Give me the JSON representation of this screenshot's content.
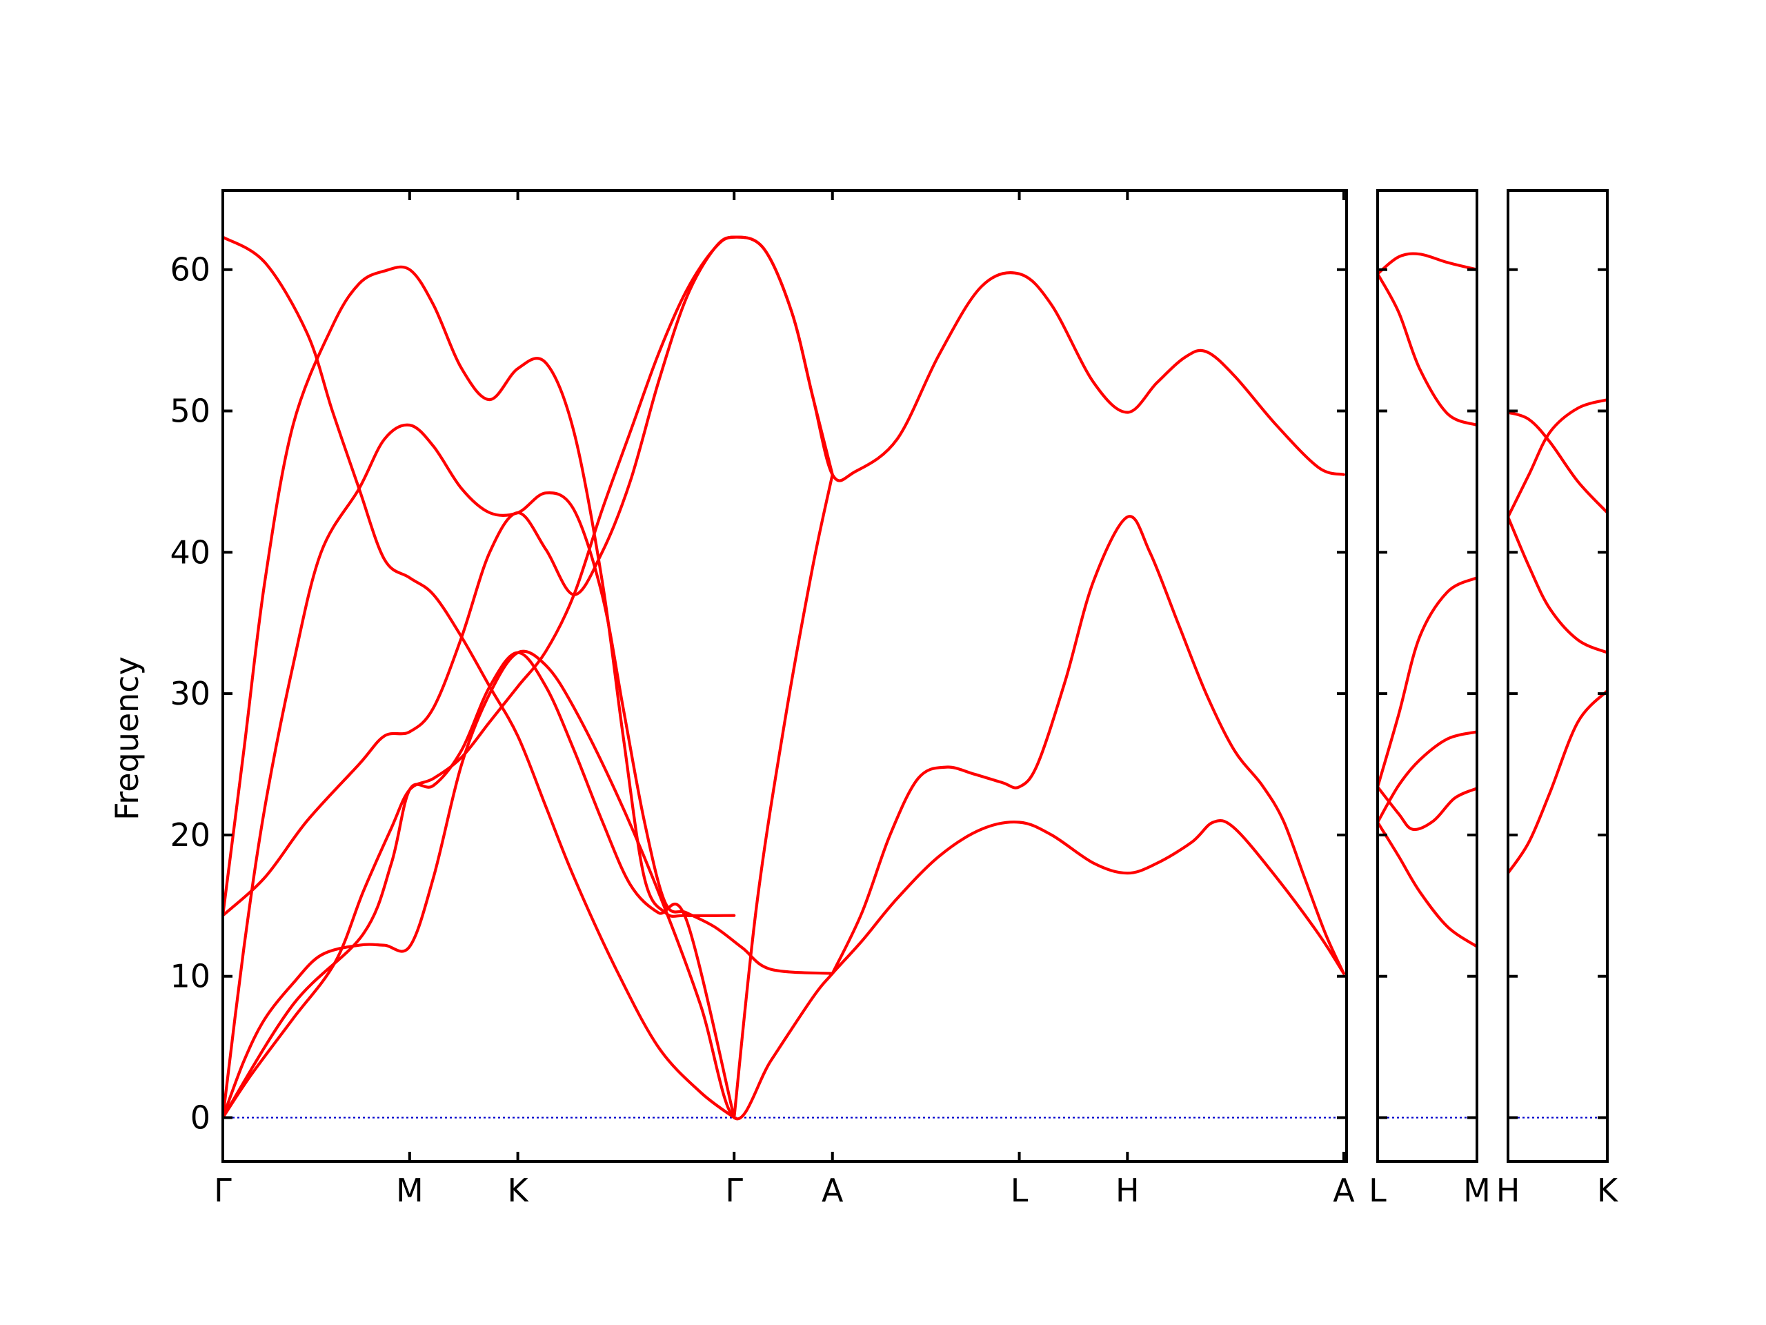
{
  "chart_data": {
    "type": "line",
    "ylabel": "Frequency",
    "xlabel": "",
    "title": "",
    "ylim": [
      -3.1,
      65.6
    ],
    "yticks": [
      0,
      10,
      20,
      30,
      40,
      50,
      60
    ],
    "grid": false,
    "colors": {
      "bands": "#ff0000",
      "zero_line": "#0000cc",
      "axes": "#000000"
    },
    "panels": [
      {
        "id": "p1",
        "x_range": [
          0,
          8.0
        ],
        "kpoints": [
          {
            "label": "Γ",
            "x": 0
          },
          {
            "label": "M",
            "x": 1.33
          },
          {
            "label": "K",
            "x": 2.1
          },
          {
            "label": "Γ",
            "x": 3.64
          },
          {
            "label": "A",
            "x": 4.34
          },
          {
            "label": "L",
            "x": 5.67
          },
          {
            "label": "H",
            "x": 6.44
          },
          {
            "label": "A",
            "x": 7.98
          }
        ],
        "bands": [
          [
            [
              0,
              62.3
            ],
            [
              0.3,
              60.5
            ],
            [
              0.6,
              55.5
            ],
            [
              0.78,
              50
            ],
            [
              0.97,
              44.5
            ],
            [
              1.15,
              39.5
            ],
            [
              1.33,
              38.2
            ],
            [
              1.5,
              37
            ],
            [
              1.7,
              34
            ],
            [
              1.9,
              30.5
            ],
            [
              2.1,
              27
            ],
            [
              2.3,
              22
            ],
            [
              2.5,
              17
            ],
            [
              2.8,
              10.5
            ],
            [
              3.1,
              5
            ],
            [
              3.4,
              1.8
            ],
            [
              3.64,
              0
            ]
          ],
          [
            [
              0,
              14.3
            ],
            [
              0.15,
              26
            ],
            [
              0.3,
              38
            ],
            [
              0.5,
              49
            ],
            [
              0.78,
              56
            ],
            [
              0.97,
              59
            ],
            [
              1.15,
              59.9
            ],
            [
              1.33,
              60
            ],
            [
              1.5,
              57.5
            ],
            [
              1.7,
              53
            ],
            [
              1.9,
              50.8
            ],
            [
              2.1,
              53
            ],
            [
              2.3,
              53.4
            ],
            [
              2.5,
              48.5
            ],
            [
              2.7,
              38
            ],
            [
              2.85,
              27
            ],
            [
              3.0,
              17
            ],
            [
              3.15,
              14.5
            ],
            [
              3.3,
              14.3
            ],
            [
              3.64,
              14.3
            ]
          ],
          [
            [
              0,
              0
            ],
            [
              0.15,
              12
            ],
            [
              0.3,
              22
            ],
            [
              0.5,
              32
            ],
            [
              0.7,
              40
            ],
            [
              0.97,
              44.5
            ],
            [
              1.15,
              48
            ],
            [
              1.33,
              49
            ],
            [
              1.5,
              47.5
            ],
            [
              1.7,
              44.5
            ],
            [
              1.9,
              42.8
            ],
            [
              2.1,
              42.8
            ],
            [
              2.3,
              44.2
            ],
            [
              2.5,
              43
            ],
            [
              2.7,
              37
            ],
            [
              2.85,
              29
            ],
            [
              3.0,
              21
            ],
            [
              3.15,
              15.2
            ],
            [
              3.3,
              14.5
            ],
            [
              3.5,
              13.5
            ],
            [
              3.7,
              12
            ],
            [
              3.9,
              10.5
            ],
            [
              4.34,
              10.2
            ]
          ],
          [
            [
              0,
              14.3
            ],
            [
              0.3,
              17
            ],
            [
              0.6,
              21
            ],
            [
              0.97,
              25
            ],
            [
              1.15,
              27
            ],
            [
              1.33,
              27.3
            ],
            [
              1.5,
              29
            ],
            [
              1.7,
              34
            ],
            [
              1.9,
              40
            ],
            [
              2.1,
              42.8
            ],
            [
              2.3,
              40.2
            ],
            [
              2.5,
              37
            ],
            [
              2.7,
              40
            ],
            [
              2.9,
              45
            ],
            [
              3.1,
              52
            ],
            [
              3.3,
              58
            ],
            [
              3.5,
              61.5
            ],
            [
              3.64,
              62.3
            ],
            [
              3.85,
              61.5
            ],
            [
              4.05,
              57
            ],
            [
              4.2,
              51
            ],
            [
              4.34,
              45.5
            ],
            [
              4.5,
              45.7
            ],
            [
              4.8,
              48
            ],
            [
              5.1,
              54
            ],
            [
              5.4,
              58.8
            ],
            [
              5.67,
              59.7
            ],
            [
              5.9,
              57.5
            ],
            [
              6.2,
              52
            ],
            [
              6.44,
              49.9
            ],
            [
              6.65,
              52
            ],
            [
              6.85,
              53.8
            ],
            [
              7.0,
              54.2
            ],
            [
              7.2,
              52.5
            ],
            [
              7.5,
              49
            ],
            [
              7.8,
              46
            ],
            [
              7.98,
              45.5
            ]
          ],
          [
            [
              0,
              0
            ],
            [
              0.15,
              4
            ],
            [
              0.3,
              7
            ],
            [
              0.5,
              9.5
            ],
            [
              0.7,
              11.5
            ],
            [
              0.97,
              12.2
            ],
            [
              1.15,
              12.2
            ],
            [
              1.33,
              12.1
            ],
            [
              1.5,
              17
            ],
            [
              1.7,
              25
            ],
            [
              1.9,
              30
            ],
            [
              2.1,
              32.9
            ],
            [
              2.3,
              32
            ],
            [
              2.5,
              29
            ],
            [
              2.8,
              23
            ],
            [
              3.1,
              16
            ],
            [
              3.4,
              8
            ],
            [
              3.64,
              0
            ],
            [
              3.9,
              4
            ],
            [
              4.2,
              8.5
            ],
            [
              4.34,
              10.2
            ],
            [
              4.55,
              12.5
            ],
            [
              4.8,
              15.5
            ],
            [
              5.1,
              18.5
            ],
            [
              5.4,
              20.4
            ],
            [
              5.67,
              20.9
            ],
            [
              5.9,
              20
            ],
            [
              6.2,
              18
            ],
            [
              6.44,
              17.3
            ],
            [
              6.65,
              18
            ],
            [
              6.9,
              19.5
            ],
            [
              7.05,
              20.9
            ],
            [
              7.2,
              20.5
            ],
            [
              7.5,
              17
            ],
            [
              7.8,
              13
            ],
            [
              7.98,
              10.2
            ]
          ],
          [
            [
              0,
              0
            ],
            [
              0.2,
              3
            ],
            [
              0.5,
              7
            ],
            [
              0.8,
              11
            ],
            [
              1.0,
              16
            ],
            [
              1.2,
              20.5
            ],
            [
              1.33,
              23.2
            ],
            [
              1.5,
              24
            ],
            [
              1.7,
              25.5
            ],
            [
              1.9,
              28
            ],
            [
              2.1,
              30.5
            ],
            [
              2.3,
              33
            ],
            [
              2.5,
              37
            ],
            [
              2.7,
              43
            ],
            [
              2.9,
              48.5
            ],
            [
              3.1,
              54
            ],
            [
              3.3,
              58.5
            ],
            [
              3.5,
              61.5
            ],
            [
              3.64,
              62.3
            ],
            [
              3.85,
              61.5
            ],
            [
              4.05,
              57
            ],
            [
              4.2,
              51
            ],
            [
              4.34,
              45.5
            ]
          ],
          [
            [
              0,
              0
            ],
            [
              0.5,
              8
            ],
            [
              1.0,
              13
            ],
            [
              1.2,
              18
            ],
            [
              1.33,
              23.2
            ],
            [
              1.5,
              23.5
            ],
            [
              1.7,
              26
            ],
            [
              1.9,
              30.5
            ],
            [
              2.1,
              32.9
            ],
            [
              2.3,
              30.5
            ],
            [
              2.5,
              26
            ],
            [
              2.7,
              21
            ],
            [
              2.9,
              16.5
            ],
            [
              3.1,
              14.5
            ],
            [
              3.3,
              14
            ],
            [
              3.64,
              0
            ]
          ],
          [
            [
              3.64,
              0
            ],
            [
              3.8,
              15
            ],
            [
              4.0,
              28
            ],
            [
              4.2,
              39
            ],
            [
              4.34,
              45.5
            ]
          ],
          [
            [
              4.34,
              10.2
            ],
            [
              4.55,
              14.5
            ],
            [
              4.75,
              20
            ],
            [
              4.95,
              24
            ],
            [
              5.15,
              24.8
            ],
            [
              5.35,
              24.3
            ],
            [
              5.55,
              23.7
            ],
            [
              5.67,
              23.4
            ],
            [
              5.8,
              25
            ],
            [
              6.0,
              31
            ],
            [
              6.2,
              38
            ],
            [
              6.44,
              42.5
            ],
            [
              6.6,
              40
            ],
            [
              6.8,
              35
            ],
            [
              7.0,
              30
            ],
            [
              7.2,
              26
            ],
            [
              7.4,
              23.5
            ],
            [
              7.55,
              21
            ],
            [
              7.7,
              17
            ],
            [
              7.85,
              13
            ],
            [
              7.98,
              10.2
            ]
          ]
        ]
      },
      {
        "id": "p2",
        "x_range": [
          0,
          0.71
        ],
        "kpoints": [
          {
            "label": "L",
            "x": 0
          },
          {
            "label": "M",
            "x": 0.71
          }
        ],
        "bands": [
          [
            [
              0,
              59.7
            ],
            [
              0.15,
              60.9
            ],
            [
              0.3,
              61.1
            ],
            [
              0.5,
              60.5
            ],
            [
              0.71,
              60
            ]
          ],
          [
            [
              0,
              59.7
            ],
            [
              0.15,
              57
            ],
            [
              0.3,
              53
            ],
            [
              0.5,
              49.8
            ],
            [
              0.71,
              49
            ]
          ],
          [
            [
              0,
              23.4
            ],
            [
              0.15,
              28.5
            ],
            [
              0.3,
              34
            ],
            [
              0.5,
              37.2
            ],
            [
              0.71,
              38.2
            ]
          ],
          [
            [
              0,
              23.4
            ],
            [
              0.15,
              21.5
            ],
            [
              0.25,
              20.4
            ],
            [
              0.4,
              21
            ],
            [
              0.55,
              22.6
            ],
            [
              0.71,
              23.3
            ]
          ],
          [
            [
              0,
              20.9
            ],
            [
              0.15,
              23.5
            ],
            [
              0.3,
              25.3
            ],
            [
              0.5,
              26.8
            ],
            [
              0.71,
              27.3
            ]
          ],
          [
            [
              0,
              20.9
            ],
            [
              0.15,
              18.5
            ],
            [
              0.3,
              16
            ],
            [
              0.5,
              13.5
            ],
            [
              0.71,
              12.1
            ]
          ]
        ]
      },
      {
        "id": "p3",
        "x_range": [
          0,
          0.71
        ],
        "kpoints": [
          {
            "label": "H",
            "x": 0
          },
          {
            "label": "K",
            "x": 0.71
          }
        ],
        "bands": [
          [
            [
              0,
              49.9
            ],
            [
              0.15,
              49.4
            ],
            [
              0.3,
              47.8
            ],
            [
              0.5,
              45
            ],
            [
              0.71,
              42.8
            ]
          ],
          [
            [
              0,
              42.5
            ],
            [
              0.15,
              45.5
            ],
            [
              0.3,
              48.5
            ],
            [
              0.5,
              50.2
            ],
            [
              0.71,
              50.8
            ]
          ],
          [
            [
              0,
              42.5
            ],
            [
              0.15,
              39
            ],
            [
              0.3,
              36
            ],
            [
              0.5,
              33.8
            ],
            [
              0.71,
              32.9
            ]
          ],
          [
            [
              0,
              17.3
            ],
            [
              0.15,
              19.5
            ],
            [
              0.3,
              23
            ],
            [
              0.5,
              28
            ],
            [
              0.71,
              30.2
            ]
          ]
        ]
      }
    ]
  }
}
